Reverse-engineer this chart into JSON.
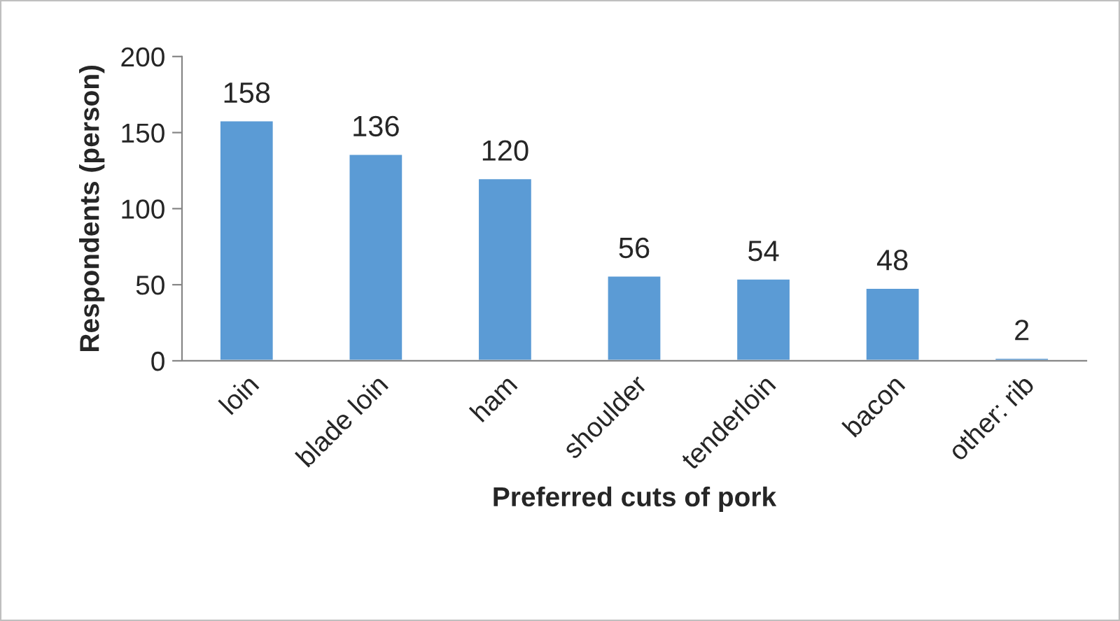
{
  "chart_data": {
    "type": "bar",
    "categories": [
      "loin",
      "blade loin",
      "ham",
      "shoulder",
      "tenderloin",
      "bacon",
      "other: rib"
    ],
    "values": [
      158,
      136,
      120,
      56,
      54,
      48,
      2
    ],
    "color": "#5b9bd5",
    "xlabel": "Preferred cuts of pork",
    "ylabel": "Respondents (person)",
    "ylim": [
      0,
      200
    ],
    "yticks": [
      0,
      50,
      100,
      150,
      200
    ],
    "data_labels": true,
    "grid": false,
    "legend": false
  }
}
